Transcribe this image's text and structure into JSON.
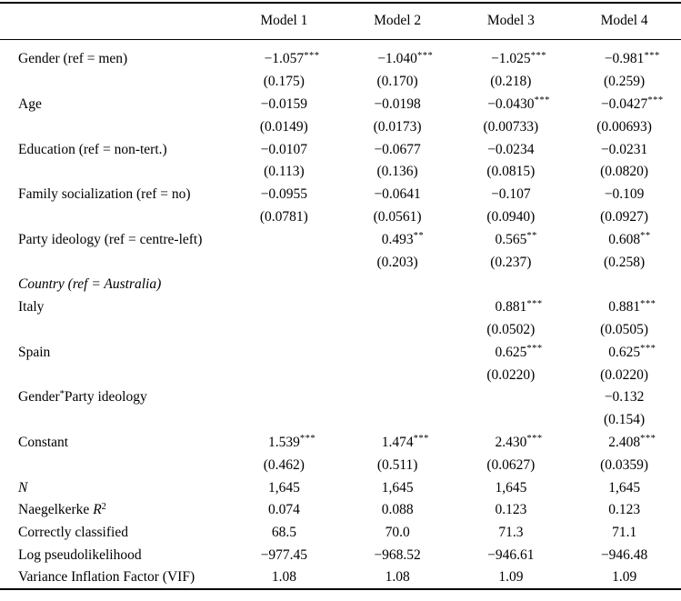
{
  "colors": {
    "text": "#000000",
    "background": "#ffffff",
    "rule": "#000000"
  },
  "table": {
    "header": {
      "c0": "",
      "c1": "Model 1",
      "c2": "Model 2",
      "c3": "Model 3",
      "c4": "Model 4"
    },
    "rows": [
      {
        "label": [
          {
            "t": "Gender (ref = men)"
          }
        ],
        "cells": [
          {
            "v": "−1.057",
            "s": "***"
          },
          {
            "v": "−1.040",
            "s": "***"
          },
          {
            "v": "−1.025",
            "s": "***"
          },
          {
            "v": "−0.981",
            "s": "***"
          }
        ]
      },
      {
        "label": [],
        "cells": [
          {
            "v": "(0.175)"
          },
          {
            "v": "(0.170)"
          },
          {
            "v": "(0.218)"
          },
          {
            "v": "(0.259)"
          }
        ]
      },
      {
        "label": [
          {
            "t": "Age"
          }
        ],
        "cells": [
          {
            "v": "−0.0159"
          },
          {
            "v": "−0.0198"
          },
          {
            "v": "−0.0430",
            "s": "***"
          },
          {
            "v": "−0.0427",
            "s": "***"
          }
        ]
      },
      {
        "label": [],
        "cells": [
          {
            "v": "(0.0149)"
          },
          {
            "v": "(0.0173)"
          },
          {
            "v": "(0.00733)"
          },
          {
            "v": "(0.00693)"
          }
        ]
      },
      {
        "label": [
          {
            "t": "Education (ref = non-tert.)"
          }
        ],
        "cells": [
          {
            "v": "−0.0107"
          },
          {
            "v": "−0.0677"
          },
          {
            "v": "−0.0234"
          },
          {
            "v": "−0.0231"
          }
        ]
      },
      {
        "label": [],
        "cells": [
          {
            "v": "(0.113)"
          },
          {
            "v": "(0.136)"
          },
          {
            "v": "(0.0815)"
          },
          {
            "v": "(0.0820)"
          }
        ]
      },
      {
        "label": [
          {
            "t": "Family socialization (ref = no)"
          }
        ],
        "cells": [
          {
            "v": "−0.0955"
          },
          {
            "v": "−0.0641"
          },
          {
            "v": "−0.107"
          },
          {
            "v": "−0.109"
          }
        ]
      },
      {
        "label": [],
        "cells": [
          {
            "v": "(0.0781)"
          },
          {
            "v": "(0.0561)"
          },
          {
            "v": "(0.0940)"
          },
          {
            "v": "(0.0927)"
          }
        ]
      },
      {
        "label": [
          {
            "t": "Party ideology (ref = centre-left)"
          }
        ],
        "cells": [
          {},
          {
            "v": "0.493",
            "s": "**"
          },
          {
            "v": "0.565",
            "s": "**"
          },
          {
            "v": "0.608",
            "s": "**"
          }
        ]
      },
      {
        "label": [],
        "cells": [
          {},
          {
            "v": "(0.203)"
          },
          {
            "v": "(0.237)"
          },
          {
            "v": "(0.258)"
          }
        ]
      },
      {
        "label": [
          {
            "t": "Country (ref = Australia)",
            "i": true
          }
        ],
        "cells": [
          {},
          {},
          {},
          {}
        ]
      },
      {
        "label": [
          {
            "t": "Italy"
          }
        ],
        "cells": [
          {},
          {},
          {
            "v": "0.881",
            "s": "***"
          },
          {
            "v": "0.881",
            "s": "***"
          }
        ]
      },
      {
        "label": [],
        "cells": [
          {},
          {},
          {
            "v": "(0.0502)"
          },
          {
            "v": "(0.0505)"
          }
        ]
      },
      {
        "label": [
          {
            "t": "Spain"
          }
        ],
        "cells": [
          {},
          {},
          {
            "v": "0.625",
            "s": "***"
          },
          {
            "v": "0.625",
            "s": "***"
          }
        ]
      },
      {
        "label": [],
        "cells": [
          {},
          {},
          {
            "v": "(0.0220)"
          },
          {
            "v": "(0.0220)"
          }
        ]
      },
      {
        "label": [
          {
            "t": "Gender"
          },
          {
            "t": "*",
            "sup": true
          },
          {
            "t": "Party ideology"
          }
        ],
        "cells": [
          {},
          {},
          {},
          {
            "v": "−0.132"
          }
        ]
      },
      {
        "label": [],
        "cells": [
          {},
          {},
          {},
          {
            "v": "(0.154)"
          }
        ]
      },
      {
        "label": [
          {
            "t": "Constant"
          }
        ],
        "cells": [
          {
            "v": "1.539",
            "s": "***"
          },
          {
            "v": "1.474",
            "s": "***"
          },
          {
            "v": "2.430",
            "s": "***"
          },
          {
            "v": "2.408",
            "s": "***"
          }
        ]
      },
      {
        "label": [],
        "cells": [
          {
            "v": "(0.462)"
          },
          {
            "v": "(0.511)"
          },
          {
            "v": "(0.0627)"
          },
          {
            "v": "(0.0359)"
          }
        ]
      },
      {
        "label": [
          {
            "t": "N",
            "i": true
          }
        ],
        "cells": [
          {
            "v": "1,645"
          },
          {
            "v": "1,645"
          },
          {
            "v": "1,645"
          },
          {
            "v": "1,645"
          }
        ]
      },
      {
        "label": [
          {
            "t": "Naegelkerke "
          },
          {
            "t": "R",
            "i": true
          },
          {
            "t": "2",
            "sup": true
          }
        ],
        "cells": [
          {
            "v": "0.074"
          },
          {
            "v": "0.088"
          },
          {
            "v": "0.123"
          },
          {
            "v": "0.123"
          }
        ]
      },
      {
        "label": [
          {
            "t": "Correctly classified"
          }
        ],
        "cells": [
          {
            "v": "68.5"
          },
          {
            "v": "70.0"
          },
          {
            "v": "71.3"
          },
          {
            "v": "71.1"
          }
        ]
      },
      {
        "label": [
          {
            "t": "Log pseudolikelihood"
          }
        ],
        "cells": [
          {
            "v": "−977.45"
          },
          {
            "v": "−968.52"
          },
          {
            "v": "−946.61"
          },
          {
            "v": "−946.48"
          }
        ]
      },
      {
        "label": [
          {
            "t": "Variance Inflation Factor (VIF)"
          }
        ],
        "cells": [
          {
            "v": "1.08"
          },
          {
            "v": "1.08"
          },
          {
            "v": "1.09"
          },
          {
            "v": "1.09"
          }
        ]
      }
    ]
  }
}
